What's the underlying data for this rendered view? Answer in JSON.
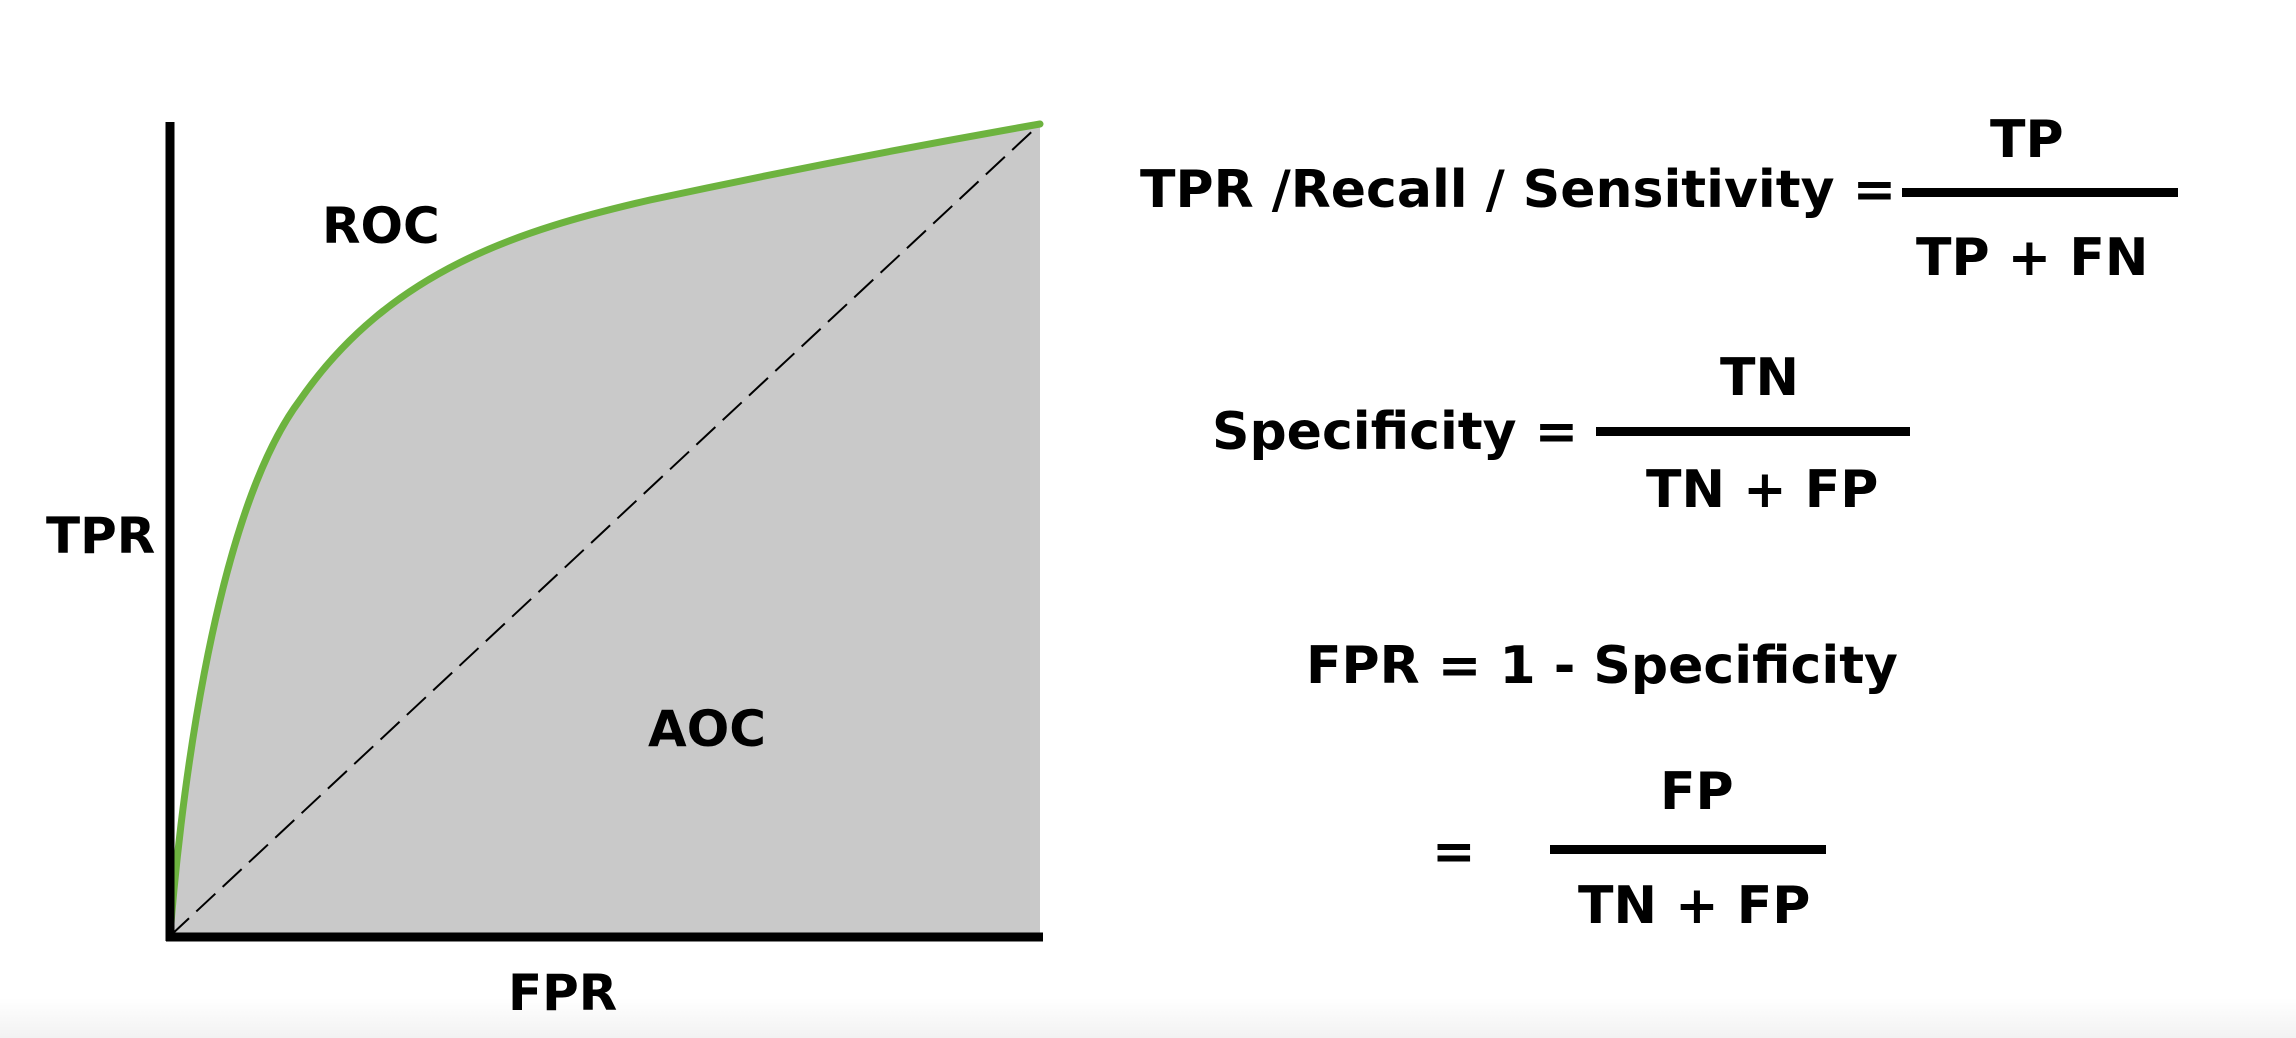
{
  "diagram": {
    "labels": {
      "y_axis": "TPR",
      "x_axis": "FPR",
      "curve": "ROC",
      "area": "AOC"
    },
    "colors": {
      "curve": "#6db33f",
      "area_fill": "#c9c9c9",
      "axes": "#000000",
      "diagonal": "#000000"
    }
  },
  "formulas": {
    "tpr": {
      "lhs": "TPR /Recall / Sensitivity =",
      "numerator": "TP",
      "denominator": "TP + FN"
    },
    "specificity": {
      "lhs": "Specificity =",
      "numerator": "TN",
      "denominator": "TN + FP"
    },
    "fpr": {
      "definition": "FPR = 1 - Specificity",
      "equals": "=",
      "numerator": "FP",
      "denominator": "TN + FP"
    }
  }
}
